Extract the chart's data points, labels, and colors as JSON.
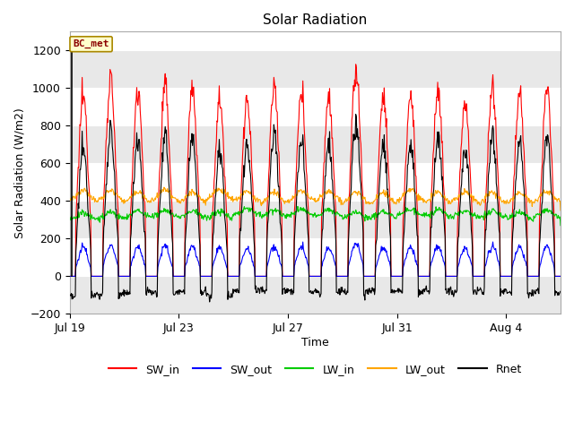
{
  "title": "Solar Radiation",
  "xlabel": "Time",
  "ylabel": "Solar Radiation (W/m2)",
  "ylim": [
    -200,
    1300
  ],
  "yticks": [
    -200,
    0,
    200,
    400,
    600,
    800,
    1000,
    1200
  ],
  "num_days": 18,
  "xtick_positions": [
    0,
    4,
    8,
    12,
    16
  ],
  "xtick_labels": [
    "Jul 19",
    "Jul 23",
    "Jul 27",
    "Jul 31",
    "Aug 4"
  ],
  "annotation_label": "BC_met",
  "line_colors": {
    "SW_in": "#ff0000",
    "SW_out": "#0000ff",
    "LW_in": "#00cc00",
    "LW_out": "#ffa500",
    "Rnet": "#000000"
  },
  "plot_bg_color": "#ffffff",
  "band_color": "#e8e8e8",
  "SW_in_peaks": [
    960,
    1060,
    1000,
    1000,
    990,
    940,
    930,
    1010,
    960,
    960,
    1100,
    950,
    960,
    1000,
    930,
    1010,
    980,
    990
  ],
  "figsize": [
    6.4,
    4.8
  ],
  "dpi": 100
}
